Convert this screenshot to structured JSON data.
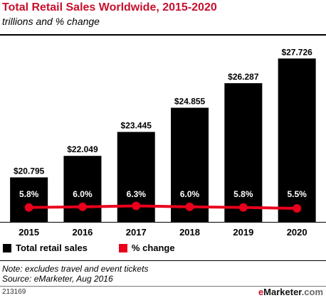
{
  "header": {
    "title": "Total Retail Sales Worldwide, 2015-2020",
    "subtitle": "trillions and % change"
  },
  "chart_data": {
    "type": "bar",
    "title": "Total Retail Sales Worldwide, 2015-2020",
    "subtitle": "trillions and % change",
    "categories": [
      "2015",
      "2016",
      "2017",
      "2018",
      "2019",
      "2020"
    ],
    "series": [
      {
        "name": "Total retail sales",
        "type": "bar",
        "values": [
          20.795,
          22.049,
          23.445,
          24.855,
          26.287,
          27.726
        ],
        "labels": [
          "$20.795",
          "$22.049",
          "$23.445",
          "$24.855",
          "$26.287",
          "$27.726"
        ],
        "color": "#000000"
      },
      {
        "name": "% change",
        "type": "line",
        "values": [
          5.8,
          6.0,
          6.3,
          6.0,
          5.8,
          5.5
        ],
        "labels": [
          "5.8%",
          "6.0%",
          "6.3%",
          "6.0%",
          "5.8%",
          "5.5%"
        ],
        "color": "#e8001c"
      }
    ],
    "legend_position": "bottom-left",
    "grid": false
  },
  "legend": {
    "items": [
      {
        "label": "Total retail sales",
        "color": "#000000"
      },
      {
        "label": "% change",
        "color": "#e8001c"
      }
    ]
  },
  "footer": {
    "note": "Note: excludes travel and event tickets",
    "source": "Source: eMarketer, Aug 2016",
    "chart_id": "213169",
    "brand_prefix": "e",
    "brand_name": "Marketer",
    "brand_suffix": ".com"
  }
}
